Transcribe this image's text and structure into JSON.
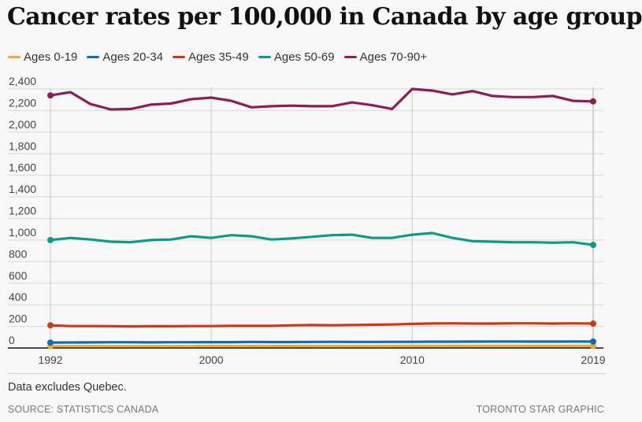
{
  "chart_data": {
    "type": "line",
    "title": "Cancer rates per 100,000 in Canada by age group",
    "xlabel": "",
    "ylabel": "",
    "x": [
      1992,
      1993,
      1994,
      1995,
      1996,
      1997,
      1998,
      1999,
      2000,
      2001,
      2002,
      2003,
      2004,
      2005,
      2006,
      2007,
      2008,
      2009,
      2010,
      2011,
      2012,
      2013,
      2014,
      2015,
      2016,
      2017,
      2018,
      2019
    ],
    "x_ticks": [
      "1992",
      "2000",
      "2010",
      "2019"
    ],
    "y_ticks": [
      "0",
      "200",
      "400",
      "600",
      "800",
      "1,000",
      "1,200",
      "1,400",
      "1,600",
      "1,800",
      "2,000",
      "2,200",
      "2,400"
    ],
    "ylim": [
      0,
      2400
    ],
    "xlim": [
      1992,
      2019
    ],
    "grid": "horizontal + vertical at labeled years",
    "legend_position": "top-left",
    "series": [
      {
        "name": "Ages 0-19",
        "color": "#f0a830",
        "values": [
          17,
          17,
          17,
          17,
          17,
          17,
          17,
          17,
          18,
          18,
          18,
          18,
          18,
          18,
          18,
          18,
          18,
          18,
          19,
          19,
          19,
          19,
          19,
          19,
          19,
          19,
          19,
          19
        ]
      },
      {
        "name": "Ages 20-34",
        "color": "#0a6fba",
        "values": [
          50,
          51,
          52,
          53,
          53,
          52,
          53,
          53,
          54,
          54,
          56,
          55,
          55,
          56,
          57,
          56,
          56,
          57,
          57,
          58,
          58,
          59,
          60,
          60,
          59,
          59,
          60,
          60
        ]
      },
      {
        "name": "Ages 35-49",
        "color": "#cc3a17",
        "values": [
          210,
          203,
          203,
          202,
          200,
          201,
          201,
          203,
          203,
          205,
          205,
          205,
          210,
          212,
          211,
          213,
          215,
          218,
          223,
          227,
          228,
          226,
          226,
          228,
          228,
          226,
          228,
          226
        ]
      },
      {
        "name": "Ages 50-69",
        "color": "#0d9a86",
        "values": [
          1000,
          1020,
          1005,
          985,
          980,
          1000,
          1005,
          1035,
          1020,
          1045,
          1035,
          1005,
          1015,
          1030,
          1045,
          1050,
          1020,
          1020,
          1050,
          1065,
          1020,
          990,
          985,
          980,
          980,
          975,
          980,
          955
        ]
      },
      {
        "name": "Ages 70-90+",
        "color": "#8c1d55",
        "values": [
          2340,
          2370,
          2260,
          2210,
          2215,
          2255,
          2265,
          2305,
          2320,
          2290,
          2230,
          2240,
          2245,
          2240,
          2240,
          2275,
          2250,
          2215,
          2400,
          2385,
          2350,
          2380,
          2335,
          2325,
          2325,
          2335,
          2290,
          2285
        ]
      }
    ],
    "annotations": [
      "Data excludes Quebec."
    ]
  },
  "note": "Data excludes Quebec.",
  "source": "SOURCE: STATISTICS CANADA",
  "credit": "TORONTO STAR GRAPHIC"
}
